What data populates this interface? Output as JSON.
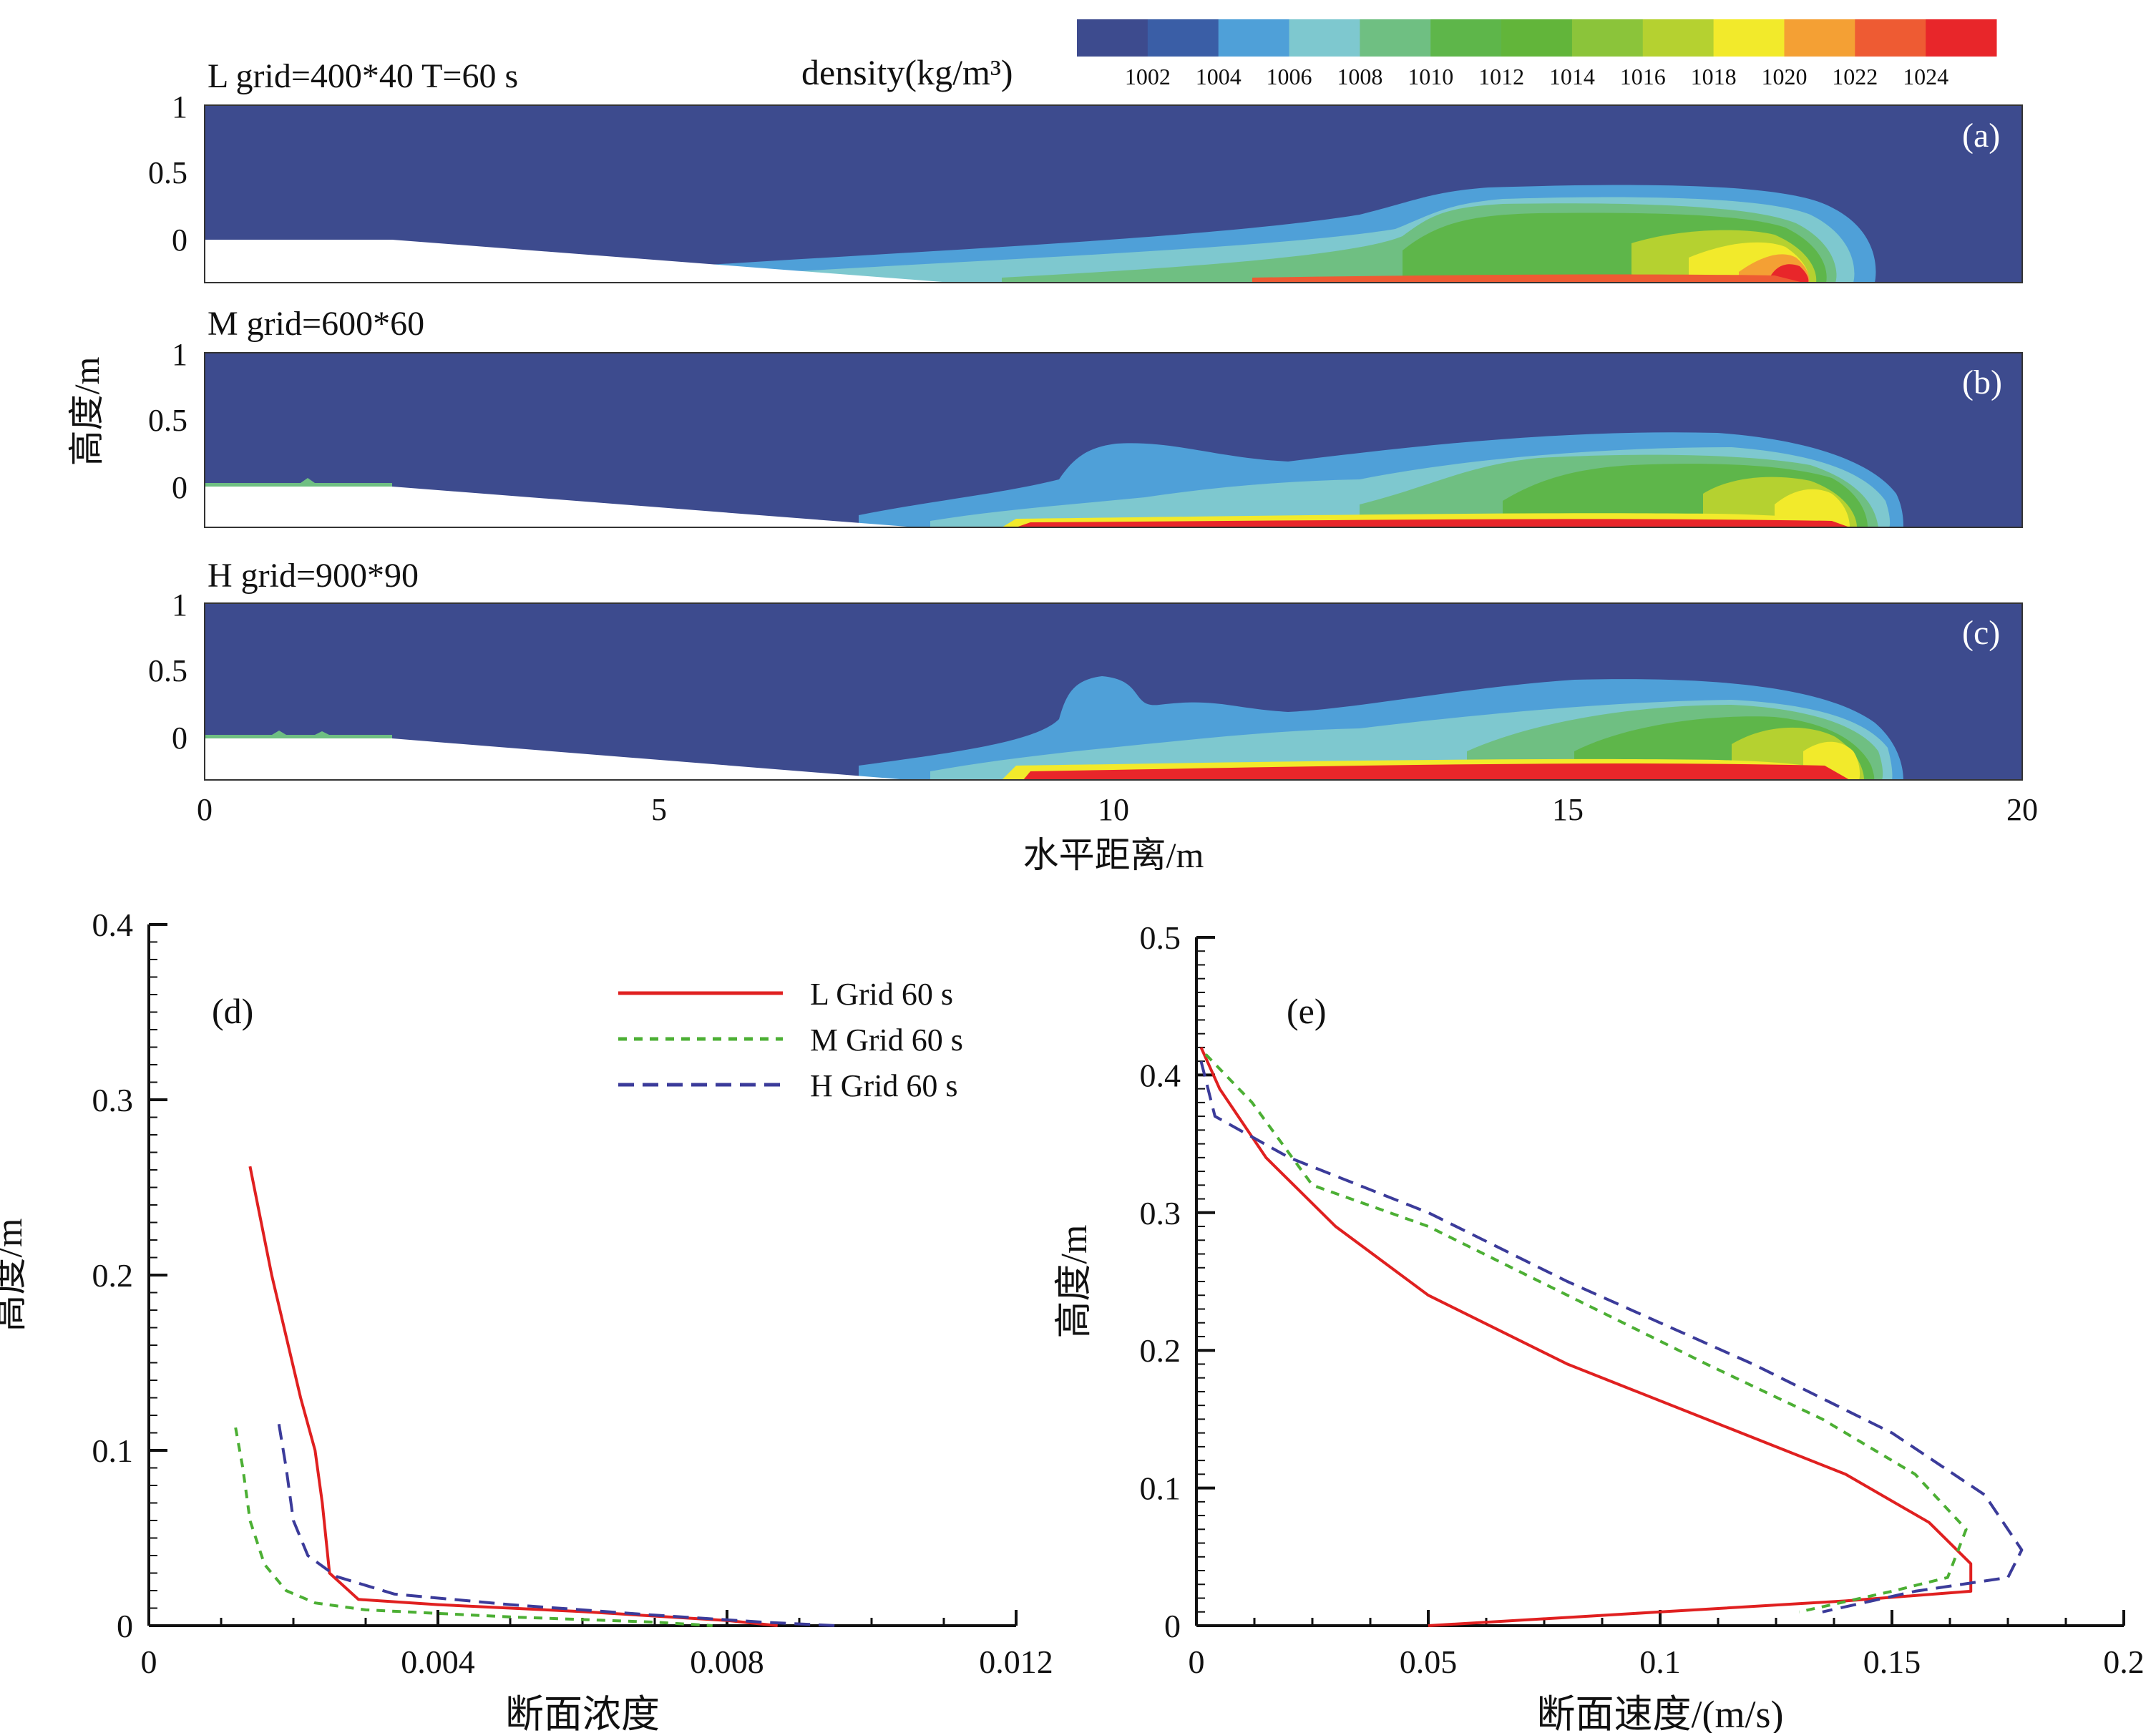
{
  "colorbar": {
    "title": "density(kg/m³)",
    "labels": [
      "1002",
      "1004",
      "1006",
      "1008",
      "1010",
      "1012",
      "1014",
      "1016",
      "1018",
      "1020",
      "1022",
      "1024"
    ],
    "colors": [
      "#3d4b8e",
      "#3a5ea6",
      "#4fa0d8",
      "#7ec8cf",
      "#6fbf82",
      "#5eb64a",
      "#62b53a",
      "#8bc43a",
      "#b5d130",
      "#f2ea2b",
      "#f4a034",
      "#ee5b33",
      "#e8262a"
    ]
  },
  "density_panels": {
    "ylabel": "高度/m",
    "xlabel": "水平距离/m",
    "xticks": [
      "0",
      "5",
      "10",
      "15",
      "20"
    ],
    "yticks": [
      "1",
      "0.5",
      "0"
    ],
    "panels": [
      {
        "title": "L grid=400*40 T=60 s",
        "tag": "(a)",
        "front_x": 18.2
      },
      {
        "title": "M grid=600*60",
        "tag": "(b)",
        "front_x": 18.6
      },
      {
        "title": "H grid=900*90",
        "tag": "(c)",
        "front_x": 18.6
      }
    ]
  },
  "chart_data": [
    {
      "type": "line",
      "tag": "(d)",
      "xlabel": "断面浓度",
      "ylabel": "高度/m",
      "xlim": [
        0,
        0.012
      ],
      "ylim": [
        0,
        0.4
      ],
      "xticks": [
        "0",
        "0.004",
        "0.008",
        "0.012"
      ],
      "yticks": [
        "0",
        "0.1",
        "0.2",
        "0.3",
        "0.4"
      ],
      "series": [
        {
          "name": "L  Grid 60 s",
          "color": "#e02020",
          "dash": "solid",
          "points": [
            [
              0.0014,
              0.262
            ],
            [
              0.0017,
              0.2
            ],
            [
              0.0021,
              0.13
            ],
            [
              0.0023,
              0.1
            ],
            [
              0.0024,
              0.07
            ],
            [
              0.0025,
              0.03
            ],
            [
              0.0029,
              0.015
            ],
            [
              0.004,
              0.012
            ],
            [
              0.006,
              0.008
            ],
            [
              0.008,
              0.003
            ],
            [
              0.0087,
              0.0
            ]
          ]
        },
        {
          "name": "M  Grid 60 s",
          "color": "#4caf34",
          "dash": "short",
          "points": [
            [
              0.0012,
              0.113
            ],
            [
              0.0013,
              0.09
            ],
            [
              0.0014,
              0.06
            ],
            [
              0.0016,
              0.035
            ],
            [
              0.0019,
              0.02
            ],
            [
              0.0023,
              0.013
            ],
            [
              0.003,
              0.009
            ],
            [
              0.005,
              0.005
            ],
            [
              0.007,
              0.002
            ],
            [
              0.0078,
              0.0
            ]
          ]
        },
        {
          "name": "H  Grid 60 s",
          "color": "#3b3b9a",
          "dash": "long",
          "points": [
            [
              0.0018,
              0.115
            ],
            [
              0.0019,
              0.09
            ],
            [
              0.002,
              0.06
            ],
            [
              0.0022,
              0.04
            ],
            [
              0.0026,
              0.028
            ],
            [
              0.0034,
              0.018
            ],
            [
              0.005,
              0.012
            ],
            [
              0.007,
              0.006
            ],
            [
              0.0085,
              0.002
            ],
            [
              0.0095,
              0.0
            ]
          ]
        }
      ]
    },
    {
      "type": "line",
      "tag": "(e)",
      "xlabel": "断面速度/(m/s)",
      "ylabel": "高度/m",
      "xlim": [
        0,
        0.2
      ],
      "ylim": [
        0,
        0.5
      ],
      "xticks": [
        "0",
        "0.05",
        "0.1",
        "0.15",
        "0.2"
      ],
      "yticks": [
        "0",
        "0.1",
        "0.2",
        "0.3",
        "0.4",
        "0.5"
      ],
      "series": [
        {
          "name": "L  Grid 60 s",
          "color": "#e02020",
          "dash": "solid",
          "points": [
            [
              0.001,
              0.42
            ],
            [
              0.005,
              0.39
            ],
            [
              0.015,
              0.34
            ],
            [
              0.03,
              0.29
            ],
            [
              0.05,
              0.24
            ],
            [
              0.08,
              0.19
            ],
            [
              0.11,
              0.15
            ],
            [
              0.14,
              0.11
            ],
            [
              0.158,
              0.075
            ],
            [
              0.167,
              0.045
            ],
            [
              0.167,
              0.025
            ],
            [
              0.14,
              0.018
            ],
            [
              0.1,
              0.01
            ],
            [
              0.05,
              0.0
            ]
          ]
        },
        {
          "name": "M  Grid 60 s",
          "color": "#4caf34",
          "dash": "short",
          "points": [
            [
              0.002,
              0.415
            ],
            [
              0.012,
              0.38
            ],
            [
              0.025,
              0.32
            ],
            [
              0.05,
              0.29
            ],
            [
              0.08,
              0.24
            ],
            [
              0.11,
              0.19
            ],
            [
              0.135,
              0.15
            ],
            [
              0.155,
              0.11
            ],
            [
              0.166,
              0.07
            ],
            [
              0.162,
              0.035
            ],
            [
              0.15,
              0.025
            ],
            [
              0.13,
              0.01
            ]
          ]
        },
        {
          "name": "H  Grid 60 s",
          "color": "#3b3b9a",
          "dash": "long",
          "points": [
            [
              0.001,
              0.41
            ],
            [
              0.004,
              0.37
            ],
            [
              0.02,
              0.34
            ],
            [
              0.05,
              0.3
            ],
            [
              0.08,
              0.25
            ],
            [
              0.12,
              0.19
            ],
            [
              0.15,
              0.14
            ],
            [
              0.17,
              0.095
            ],
            [
              0.178,
              0.055
            ],
            [
              0.175,
              0.035
            ],
            [
              0.155,
              0.025
            ],
            [
              0.135,
              0.01
            ]
          ]
        }
      ]
    }
  ]
}
